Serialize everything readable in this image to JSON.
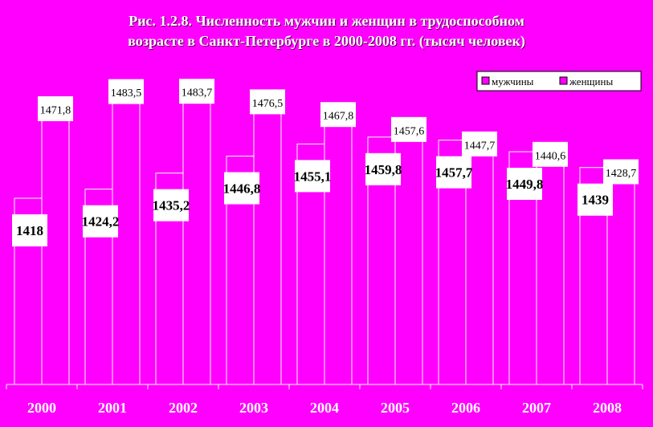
{
  "chart_data": {
    "type": "bar",
    "title_line1": "Рис. 1.2.8. Численность мужчин и женщин в трудоспособном",
    "title_line2": "возрасте в Санкт-Петербурге в 2000-2008 гг. (тысяч человек)",
    "categories": [
      "2000",
      "2001",
      "2002",
      "2003",
      "2004",
      "2005",
      "2006",
      "2007",
      "2008"
    ],
    "series": [
      {
        "name": "мужчины",
        "values": [
          1418,
          1424.2,
          1435.2,
          1446.8,
          1455.1,
          1459.8,
          1457.7,
          1449.8,
          1439
        ],
        "labels": [
          "1418",
          "1424,2",
          "1435,2",
          "1446,8",
          "1455,1",
          "1459,8",
          "1457,7",
          "1449,8",
          "1439"
        ]
      },
      {
        "name": "женщины",
        "values": [
          1471.8,
          1483.5,
          1483.7,
          1476.5,
          1467.8,
          1457.6,
          1447.7,
          1440.6,
          1428.7
        ],
        "labels": [
          "1471,8",
          "1483,5",
          "1483,7",
          "1476,5",
          "1467,8",
          "1457,6",
          "1447,7",
          "1440,6",
          "1428,7"
        ]
      }
    ],
    "legend_position": "top-right",
    "grid": false,
    "colors": {
      "background": "#ff00ff",
      "bar_fill": "#ff00ff",
      "bar_stroke": "#ffffff",
      "label_box": "#ffffff"
    }
  }
}
